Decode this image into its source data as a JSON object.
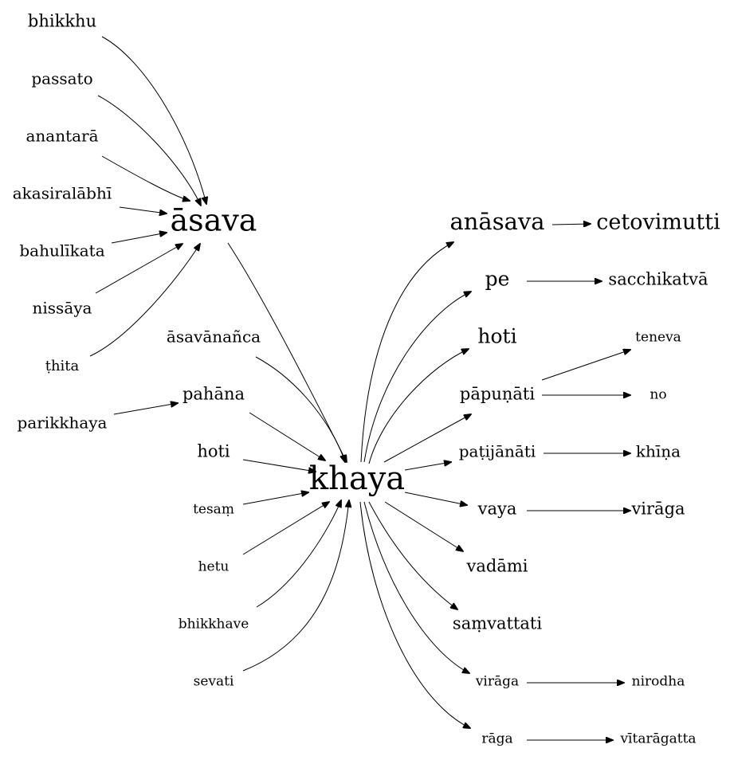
{
  "nodes": {
    "bhikkhu": "bhikkhu",
    "passato": "passato",
    "anantara": "anantarā",
    "akasiralabhi": "akasiralābhī",
    "bahulikata": "bahulīkata",
    "nissaya": "nissāya",
    "thita": "ṭhita",
    "asava": "āsava",
    "asavananca": "āsavānañca",
    "parikkhaya": "parikkhaya",
    "pahana": "pahāna",
    "hoti_left": "hoti",
    "tesam": "tesaṃ",
    "hetu": "hetu",
    "bhikkhave": "bhikkhave",
    "sevati": "sevati",
    "khaya": "khaya",
    "anasava": "anāsava",
    "cetovimutti": "cetovimutti",
    "pe": "pe",
    "sacchikatva": "sacchikatvā",
    "hoti_right": "hoti",
    "papunati": "pāpuṇāti",
    "teneva": "teneva",
    "no": "no",
    "patijanati": "paṭijānāti",
    "khina": "khīṇa",
    "vaya": "vaya",
    "viraga_top": "virāga",
    "vadami": "vadāmi",
    "samvattati": "saṃvattati",
    "viraga_bottom": "virāga",
    "nirodha": "nirodha",
    "raga": "rāga",
    "vitaragatta": "vītarāgatta"
  },
  "edges": [
    [
      "bhikkhu",
      "asava"
    ],
    [
      "passato",
      "asava"
    ],
    [
      "anantara",
      "asava"
    ],
    [
      "akasiralabhi",
      "asava"
    ],
    [
      "bahulikata",
      "asava"
    ],
    [
      "nissaya",
      "asava"
    ],
    [
      "thita",
      "asava"
    ],
    [
      "parikkhaya",
      "pahana"
    ],
    [
      "asava",
      "khaya"
    ],
    [
      "asavananca",
      "khaya"
    ],
    [
      "pahana",
      "khaya"
    ],
    [
      "hoti_left",
      "khaya"
    ],
    [
      "tesam",
      "khaya"
    ],
    [
      "hetu",
      "khaya"
    ],
    [
      "bhikkhave",
      "khaya"
    ],
    [
      "sevati",
      "khaya"
    ],
    [
      "khaya",
      "anasava"
    ],
    [
      "khaya",
      "pe"
    ],
    [
      "khaya",
      "hoti_right"
    ],
    [
      "khaya",
      "papunati"
    ],
    [
      "khaya",
      "patijanati"
    ],
    [
      "khaya",
      "vaya"
    ],
    [
      "khaya",
      "vadami"
    ],
    [
      "khaya",
      "samvattati"
    ],
    [
      "khaya",
      "viraga_bottom"
    ],
    [
      "khaya",
      "raga"
    ],
    [
      "anasava",
      "cetovimutti"
    ],
    [
      "pe",
      "sacchikatva"
    ],
    [
      "papunati",
      "teneva"
    ],
    [
      "papunati",
      "no"
    ],
    [
      "patijanati",
      "khina"
    ],
    [
      "vaya",
      "viraga_top"
    ],
    [
      "viraga_bottom",
      "nirodha"
    ],
    [
      "raga",
      "vitaragatta"
    ]
  ]
}
